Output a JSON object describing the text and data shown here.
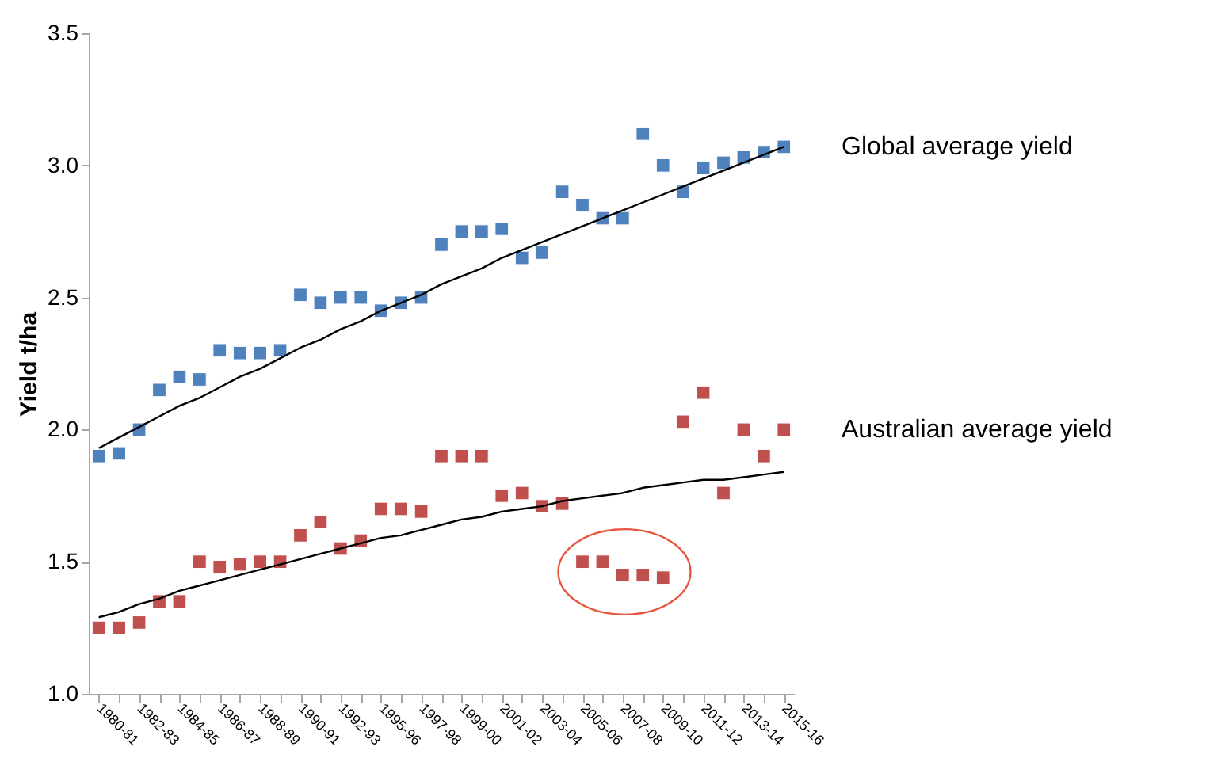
{
  "chart_data": {
    "type": "scatter",
    "ylabel": "Yield t/ha",
    "categories": [
      "1980-81",
      null,
      "1982-83",
      null,
      "1984-85",
      null,
      "1986-87",
      null,
      "1988-89",
      null,
      "1990-91",
      null,
      "1992-93",
      null,
      "1995-96",
      null,
      "1997-98",
      null,
      "1999-00",
      null,
      "2001-02",
      null,
      "2003-04",
      null,
      "2005-06",
      null,
      "2007-08",
      null,
      "2009-10",
      null,
      "2011-12",
      null,
      "2013-14",
      null,
      "2015-16"
    ],
    "ylim": [
      1.0,
      3.5
    ],
    "yticks": [
      {
        "value": 1.0,
        "label": "1.0"
      },
      {
        "value": 1.5,
        "label": "1.5"
      },
      {
        "value": 2.0,
        "label": "2.0"
      },
      {
        "value": 2.5,
        "label": "2.5"
      },
      {
        "value": 3.0,
        "label": "3.0"
      },
      {
        "value": 3.5,
        "label": "3.5"
      }
    ],
    "grid": false,
    "marker": "square",
    "series": [
      {
        "name": "Global average yield",
        "color": "#4f81bd",
        "values": [
          1.9,
          1.91,
          2.0,
          2.15,
          2.2,
          2.19,
          2.3,
          2.29,
          2.29,
          2.3,
          2.51,
          2.48,
          2.5,
          2.5,
          2.45,
          2.48,
          2.5,
          2.7,
          2.75,
          2.75,
          2.76,
          2.65,
          2.67,
          2.9,
          2.85,
          2.8,
          2.8,
          3.12,
          3.0,
          2.9,
          2.99,
          3.01,
          3.03,
          3.05,
          3.07
        ]
      },
      {
        "name": "Australian average yield",
        "color": "#c0504d",
        "values": [
          1.25,
          1.25,
          1.27,
          1.35,
          1.35,
          1.5,
          1.48,
          1.49,
          1.5,
          1.5,
          1.6,
          1.65,
          1.55,
          1.58,
          1.7,
          1.7,
          1.69,
          1.9,
          1.9,
          1.9,
          1.75,
          1.76,
          1.71,
          1.72,
          1.5,
          1.5,
          1.45,
          1.45,
          1.44,
          2.03,
          2.14,
          1.76,
          2.0,
          1.9,
          2.0
        ]
      },
      {
        "type": "line",
        "color": "#000000",
        "line_style": "solid",
        "marker": "none",
        "values": [
          1.93,
          1.97,
          2.01,
          2.05,
          2.09,
          2.12,
          2.16,
          2.2,
          2.23,
          2.27,
          2.31,
          2.34,
          2.38,
          2.41,
          2.45,
          2.48,
          2.51,
          2.55,
          2.58,
          2.61,
          2.65,
          2.68,
          2.71,
          2.74,
          2.77,
          2.8,
          2.83,
          2.86,
          2.89,
          2.92,
          2.95,
          2.98,
          3.01,
          3.04,
          3.07
        ]
      },
      {
        "type": "line",
        "color": "#000000",
        "line_style": "solid",
        "marker": "none",
        "values": [
          1.29,
          1.31,
          1.34,
          1.36,
          1.39,
          1.41,
          1.43,
          1.45,
          1.47,
          1.49,
          1.51,
          1.53,
          1.55,
          1.57,
          1.59,
          1.6,
          1.62,
          1.64,
          1.66,
          1.67,
          1.69,
          1.7,
          1.71,
          1.73,
          1.74,
          1.75,
          1.76,
          1.78,
          1.79,
          1.8,
          1.81,
          1.81,
          1.82,
          1.83,
          1.84
        ]
      }
    ]
  }
}
